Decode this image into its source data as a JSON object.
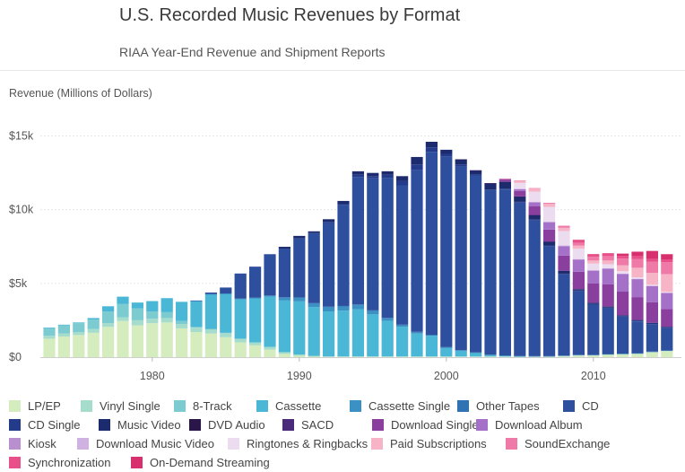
{
  "chart_data": {
    "type": "bar",
    "stacked": true,
    "title": "U.S. Recorded Music Revenues by Format",
    "subtitle": "RIAA Year-End Revenue and Shipment Reports",
    "ylabel": "Revenue (Millions of Dollars)",
    "xlabel": "",
    "ylim": [
      0,
      16000
    ],
    "yticks": [
      0,
      5000,
      10000,
      15000
    ],
    "ytick_labels": [
      "$0",
      "$5k",
      "$10k",
      "$15k"
    ],
    "xticks": [
      1980,
      1990,
      2000,
      2010
    ],
    "xtick_labels": [
      "1980",
      "1990",
      "2000",
      "2010"
    ],
    "years": [
      1973,
      1974,
      1975,
      1976,
      1977,
      1978,
      1979,
      1980,
      1981,
      1982,
      1983,
      1984,
      1985,
      1986,
      1987,
      1988,
      1989,
      1990,
      1991,
      1992,
      1993,
      1994,
      1995,
      1996,
      1997,
      1998,
      1999,
      2000,
      2001,
      2002,
      2003,
      2004,
      2005,
      2006,
      2007,
      2008,
      2009,
      2010,
      2011,
      2012,
      2013,
      2014,
      2015
    ],
    "series": [
      {
        "name": "LP/EP",
        "color": "#d5ecbe",
        "values": [
          1250,
          1400,
          1500,
          1650,
          2050,
          2450,
          2150,
          2300,
          2350,
          1950,
          1700,
          1600,
          1350,
          1000,
          800,
          500,
          220,
          90,
          30,
          10,
          10,
          10,
          10,
          10,
          10,
          10,
          10,
          10,
          10,
          10,
          10,
          10,
          10,
          10,
          10,
          50,
          100,
          100,
          150,
          180,
          210,
          320,
          400
        ]
      },
      {
        "name": "Vinyl Single",
        "color": "#a6dccb",
        "values": [
          200,
          200,
          200,
          250,
          250,
          250,
          350,
          300,
          300,
          300,
          300,
          300,
          300,
          250,
          200,
          200,
          120,
          90,
          60,
          40,
          40,
          40,
          40,
          40,
          40,
          40,
          40,
          40,
          40,
          40,
          40,
          40,
          40,
          40,
          40,
          40,
          40,
          40,
          40,
          40,
          40,
          40,
          40
        ]
      },
      {
        "name": "8-Track",
        "color": "#7bcbd0",
        "values": [
          500,
          550,
          600,
          650,
          800,
          900,
          800,
          500,
          400,
          200,
          50,
          10,
          0,
          0,
          0,
          0,
          0,
          0,
          0,
          0,
          0,
          0,
          0,
          0,
          0,
          0,
          0,
          0,
          0,
          0,
          0,
          0,
          0,
          0,
          0,
          0,
          0,
          0,
          0,
          0,
          0,
          0,
          0
        ]
      },
      {
        "name": "Cassette",
        "color": "#49b7d5",
        "values": [
          50,
          50,
          50,
          100,
          350,
          500,
          400,
          700,
          950,
          1300,
          1750,
          2350,
          2650,
          2700,
          3000,
          3400,
          3500,
          3600,
          3300,
          3050,
          3100,
          3200,
          2850,
          2400,
          2000,
          1550,
          1400,
          600,
          400,
          250,
          100,
          50,
          10,
          0,
          0,
          0,
          0,
          0,
          0,
          0,
          0,
          0,
          0
        ]
      },
      {
        "name": "Cassette Single",
        "color": "#3b90c4",
        "values": [
          0,
          0,
          0,
          0,
          0,
          0,
          0,
          0,
          0,
          0,
          0,
          0,
          0,
          0,
          15,
          60,
          200,
          250,
          250,
          300,
          300,
          300,
          250,
          190,
          130,
          100,
          50,
          10,
          0,
          0,
          0,
          0,
          0,
          0,
          0,
          0,
          0,
          0,
          0,
          0,
          0,
          0,
          0
        ]
      },
      {
        "name": "Other Tapes",
        "color": "#2f73b5",
        "values": [
          0,
          0,
          0,
          0,
          0,
          0,
          0,
          0,
          0,
          0,
          20,
          20,
          20,
          20,
          20,
          20,
          20,
          20,
          20,
          20,
          20,
          20,
          20,
          20,
          20,
          20,
          20,
          20,
          20,
          20,
          20,
          20,
          20,
          20,
          20,
          20,
          20,
          20,
          20,
          20,
          20,
          20,
          20
        ]
      },
      {
        "name": "CD",
        "color": "#2d4f9e",
        "values": [
          0,
          0,
          0,
          0,
          0,
          0,
          0,
          0,
          0,
          0,
          20,
          100,
          400,
          1700,
          2100,
          2800,
          3300,
          4000,
          4750,
          5650,
          6850,
          8650,
          8950,
          9500,
          9450,
          10950,
          12400,
          12900,
          12450,
          12000,
          11150,
          11250,
          10400,
          9200,
          7450,
          5500,
          4300,
          3400,
          3100,
          2500,
          2150,
          1850,
          1500
        ]
      },
      {
        "name": "CD Single",
        "color": "#243b8c",
        "values": [
          0,
          0,
          0,
          0,
          0,
          0,
          0,
          0,
          0,
          0,
          0,
          0,
          0,
          0,
          0,
          0,
          0,
          0,
          0,
          100,
          50,
          150,
          150,
          200,
          300,
          400,
          300,
          200,
          150,
          50,
          50,
          50,
          50,
          50,
          50,
          50,
          50,
          50,
          50,
          50,
          50,
          50,
          50
        ]
      },
      {
        "name": "Music Video",
        "color": "#1c2a6e",
        "values": [
          0,
          0,
          0,
          0,
          0,
          0,
          0,
          0,
          0,
          0,
          0,
          0,
          0,
          0,
          0,
          0,
          120,
          170,
          120,
          180,
          220,
          230,
          220,
          240,
          320,
          500,
          380,
          280,
          330,
          280,
          400,
          450,
          350,
          300,
          250,
          200,
          100,
          80,
          70,
          50,
          50,
          50,
          50
        ]
      },
      {
        "name": "DVD Audio",
        "color": "#2a1648",
        "values": [
          0,
          0,
          0,
          0,
          0,
          0,
          0,
          0,
          0,
          0,
          0,
          0,
          0,
          0,
          0,
          0,
          0,
          0,
          0,
          0,
          0,
          0,
          0,
          0,
          0,
          0,
          0,
          0,
          10,
          10,
          10,
          10,
          10,
          10,
          10,
          0,
          0,
          0,
          0,
          0,
          0,
          0,
          0
        ]
      },
      {
        "name": "SACD",
        "color": "#4a2a7a",
        "values": [
          0,
          0,
          0,
          0,
          0,
          0,
          0,
          0,
          0,
          0,
          0,
          0,
          0,
          0,
          0,
          0,
          0,
          0,
          0,
          0,
          0,
          0,
          0,
          0,
          0,
          0,
          0,
          0,
          0,
          10,
          20,
          20,
          10,
          10,
          10,
          0,
          0,
          0,
          0,
          0,
          0,
          0,
          0
        ]
      },
      {
        "name": "Download Single",
        "color": "#8a3e9e",
        "values": [
          0,
          0,
          0,
          0,
          0,
          0,
          0,
          0,
          0,
          0,
          0,
          0,
          0,
          0,
          0,
          0,
          0,
          0,
          0,
          0,
          0,
          0,
          0,
          0,
          0,
          0,
          0,
          0,
          0,
          0,
          0,
          140,
          360,
          580,
          810,
          1030,
          1180,
          1300,
          1500,
          1600,
          1550,
          1400,
          1200
        ]
      },
      {
        "name": "Download Album",
        "color": "#a570c8",
        "values": [
          0,
          0,
          0,
          0,
          0,
          0,
          0,
          0,
          0,
          0,
          0,
          0,
          0,
          0,
          0,
          0,
          0,
          0,
          0,
          0,
          0,
          0,
          0,
          0,
          0,
          0,
          0,
          0,
          0,
          0,
          0,
          50,
          140,
          280,
          500,
          640,
          830,
          880,
          1070,
          1200,
          1230,
          1100,
          1100
        ]
      },
      {
        "name": "Kiosk",
        "color": "#b890d0",
        "values": [
          0,
          0,
          0,
          0,
          0,
          0,
          0,
          0,
          0,
          0,
          0,
          0,
          0,
          0,
          0,
          0,
          0,
          0,
          0,
          0,
          0,
          0,
          0,
          0,
          0,
          0,
          0,
          0,
          0,
          0,
          0,
          0,
          0,
          0,
          0,
          0,
          0,
          0,
          0,
          0,
          0,
          0,
          0
        ]
      },
      {
        "name": "Download Music Video",
        "color": "#d0b2e2",
        "values": [
          0,
          0,
          0,
          0,
          0,
          0,
          0,
          0,
          0,
          0,
          0,
          0,
          0,
          0,
          0,
          0,
          0,
          0,
          0,
          0,
          0,
          0,
          0,
          0,
          0,
          0,
          0,
          0,
          0,
          0,
          0,
          0,
          10,
          20,
          30,
          40,
          30,
          20,
          20,
          20,
          10,
          10,
          10
        ]
      },
      {
        "name": "Ringtones & Ringbacks",
        "color": "#ebdcf0",
        "values": [
          0,
          0,
          0,
          0,
          0,
          0,
          0,
          0,
          0,
          0,
          0,
          0,
          0,
          0,
          0,
          0,
          0,
          0,
          0,
          0,
          0,
          0,
          0,
          0,
          0,
          0,
          0,
          0,
          0,
          0,
          0,
          0,
          400,
          700,
          1000,
          980,
          700,
          450,
          280,
          170,
          100,
          70,
          60
        ]
      },
      {
        "name": "Paid Subscriptions",
        "color": "#f6b4c6",
        "values": [
          0,
          0,
          0,
          0,
          0,
          0,
          0,
          0,
          0,
          0,
          0,
          0,
          0,
          0,
          0,
          0,
          0,
          0,
          0,
          0,
          0,
          0,
          0,
          0,
          0,
          0,
          0,
          0,
          0,
          0,
          0,
          0,
          150,
          200,
          210,
          220,
          210,
          210,
          250,
          400,
          650,
          800,
          1200
        ]
      },
      {
        "name": "SoundExchange",
        "color": "#ef7aa8",
        "values": [
          0,
          0,
          0,
          0,
          0,
          0,
          0,
          0,
          0,
          0,
          0,
          0,
          0,
          0,
          0,
          0,
          0,
          0,
          0,
          0,
          0,
          0,
          0,
          0,
          0,
          0,
          0,
          0,
          0,
          0,
          0,
          10,
          20,
          40,
          70,
          140,
          200,
          250,
          300,
          450,
          600,
          750,
          800
        ]
      },
      {
        "name": "Synchronization",
        "color": "#e8508a",
        "values": [
          0,
          0,
          0,
          0,
          0,
          0,
          0,
          0,
          0,
          0,
          0,
          0,
          0,
          0,
          0,
          0,
          0,
          0,
          0,
          0,
          0,
          0,
          0,
          0,
          0,
          0,
          0,
          0,
          0,
          0,
          0,
          0,
          0,
          0,
          0,
          0,
          200,
          190,
          200,
          190,
          190,
          190,
          200
        ]
      },
      {
        "name": "On-Demand Streaming",
        "color": "#d8306e",
        "values": [
          0,
          0,
          0,
          0,
          0,
          0,
          0,
          0,
          0,
          0,
          0,
          0,
          0,
          0,
          0,
          0,
          0,
          0,
          0,
          0,
          0,
          0,
          0,
          0,
          0,
          0,
          0,
          0,
          0,
          0,
          0,
          0,
          0,
          0,
          0,
          0,
          0,
          0,
          0,
          150,
          300,
          550,
          350
        ]
      }
    ],
    "legend_position": "bottom",
    "grid": true
  }
}
